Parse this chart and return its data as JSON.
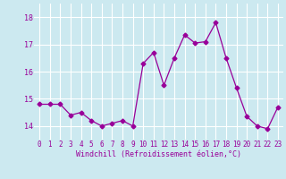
{
  "x": [
    0,
    1,
    2,
    3,
    4,
    5,
    6,
    7,
    8,
    9,
    10,
    11,
    12,
    13,
    14,
    15,
    16,
    17,
    18,
    19,
    20,
    21,
    22,
    23
  ],
  "y": [
    14.8,
    14.8,
    14.8,
    14.4,
    14.5,
    14.2,
    14.0,
    14.1,
    14.2,
    14.0,
    16.3,
    16.7,
    15.5,
    16.5,
    17.35,
    17.05,
    17.1,
    17.8,
    16.5,
    15.4,
    14.35,
    14.0,
    13.9,
    14.7
  ],
  "line_color": "#990099",
  "marker": "D",
  "marker_size": 2.5,
  "xlabel": "Windchill (Refroidissement éolien,°C)",
  "xlim": [
    -0.5,
    23.5
  ],
  "ylim": [
    13.5,
    18.5
  ],
  "yticks": [
    14,
    15,
    16,
    17,
    18
  ],
  "xticks": [
    0,
    1,
    2,
    3,
    4,
    5,
    6,
    7,
    8,
    9,
    10,
    11,
    12,
    13,
    14,
    15,
    16,
    17,
    18,
    19,
    20,
    21,
    22,
    23
  ],
  "bg_color": "#cce9f0",
  "grid_color": "#ffffff",
  "label_color": "#990099",
  "tick_fontsize": 5.5,
  "xlabel_fontsize": 6.0
}
